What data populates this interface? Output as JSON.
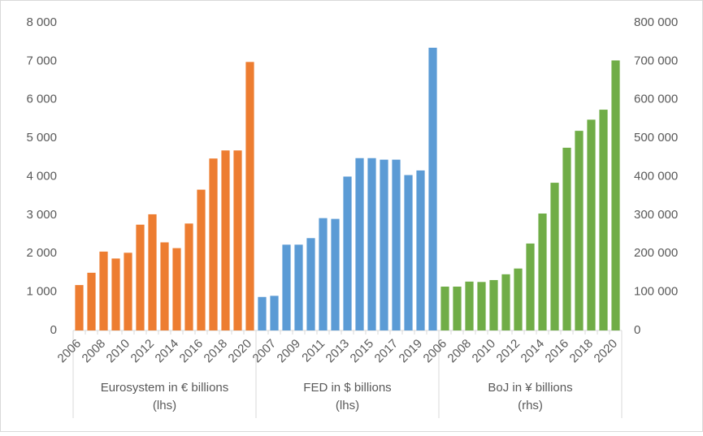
{
  "chart_data": {
    "type": "bar",
    "ylim": [
      0,
      8000
    ],
    "yticks": [
      0,
      {
        "value": 1000,
        "label": "1 000"
      },
      {
        "value": 2000,
        "label": "2 000"
      },
      {
        "value": 3000,
        "label": "3 000"
      },
      {
        "value": 4000,
        "label": "4 000"
      },
      {
        "value": 5000,
        "label": "5 000"
      },
      {
        "value": 6000,
        "label": "6 000"
      },
      {
        "value": 7000,
        "label": "7 000"
      },
      {
        "value": 8000,
        "label": "8 000"
      }
    ],
    "y2lim": [
      0,
      800000
    ],
    "y2ticks": [
      0,
      {
        "value": 100000,
        "label": "100 000"
      },
      {
        "value": 200000,
        "label": "200 000"
      },
      {
        "value": 300000,
        "label": "300 000"
      },
      {
        "value": 400000,
        "label": "400 000"
      },
      {
        "value": 500000,
        "label": "500 000"
      },
      {
        "value": 600000,
        "label": "600 000"
      },
      {
        "value": 700000,
        "label": "700 000"
      },
      {
        "value": 800000,
        "label": "800 000"
      }
    ],
    "grid": false,
    "series": [
      {
        "name": "Eurosystem in € billions",
        "axis_note": "(lhs)",
        "color": "#ed7d31",
        "categories": [
          "2006",
          null,
          "2008",
          null,
          "2010",
          null,
          "2012",
          null,
          "2014",
          null,
          "2016",
          null,
          "2018",
          null,
          "2020"
        ],
        "values": [
          1180,
          1500,
          2050,
          1870,
          2020,
          2750,
          3020,
          2290,
          2140,
          2780,
          3660,
          4470,
          4680,
          4680,
          6980
        ]
      },
      {
        "name": "FED in $ billions",
        "axis_note": "(lhs)",
        "color": "#5b9bd5",
        "categories": [
          null,
          "2007",
          null,
          "2009",
          null,
          "2011",
          null,
          "2013",
          null,
          "2015",
          null,
          "2017",
          null,
          "2019",
          null
        ],
        "values": [
          870,
          900,
          2230,
          2230,
          2400,
          2920,
          2900,
          4000,
          4480,
          4480,
          4440,
          4440,
          4040,
          4160,
          7350
        ]
      },
      {
        "name": "BoJ in ¥ billions",
        "axis_note": "(rhs)",
        "color": "#70ad47",
        "axis": "y2",
        "categories": [
          "2006",
          null,
          "2008",
          null,
          "2010",
          null,
          "2012",
          null,
          "2014",
          null,
          "2016",
          null,
          "2018",
          null,
          "2020"
        ],
        "values": [
          114000,
          114000,
          127000,
          126000,
          131000,
          146000,
          161000,
          226000,
          304000,
          384000,
          475000,
          519000,
          548000,
          574000,
          702000
        ]
      }
    ]
  }
}
